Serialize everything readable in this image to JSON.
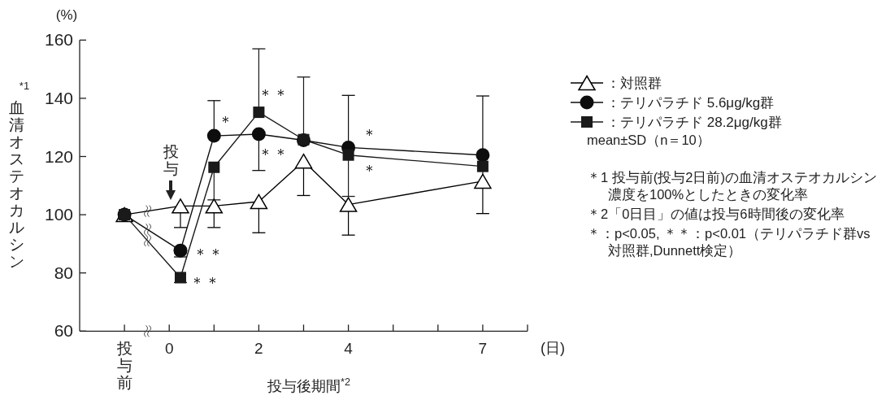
{
  "chart_data": {
    "type": "line",
    "ylabel": "$^{*1}$血清オステオカルシン",
    "xlabel": "投与後期間$^{*2}$",
    "x": [
      -1,
      0.25,
      1,
      2,
      3,
      4,
      7
    ],
    "xlim": [
      -2,
      8
    ],
    "xticks": [
      {
        "value": -1,
        "label": "投与前"
      },
      0,
      {
        "value": 1,
        "label": null
      },
      2,
      {
        "value": 3,
        "label": null
      },
      4,
      {
        "value": 5,
        "label": null
      },
      {
        "value": 6,
        "label": null
      },
      7,
      {
        "value": 8,
        "label": null
      }
    ],
    "ylim": [
      60,
      160
    ],
    "yticks": [
      60,
      80,
      100,
      120,
      140,
      160
    ],
    "legend": "right",
    "line_style": "solid",
    "series": [
      {
        "name": "：対照群",
        "color": "#000000",
        "marker": "triangle",
        "values": [
          100,
          103,
          103,
          104.5,
          118.4,
          103.5,
          111.5
        ],
        "errors": [
          null,
          [
            95.6,
            103
          ],
          [
            95.6,
            103
          ],
          [
            93.8,
            104.5
          ],
          [
            106.6,
            118.4
          ],
          [
            93,
            103.5
          ],
          [
            100.4,
            111.5
          ]
        ]
      },
      {
        "name": "：テリパラチド 5.6μg/kg群",
        "color": "#0d0d0d",
        "marker": "circle",
        "values": [
          100,
          87.7,
          127.1,
          127.7,
          125.6,
          123.1,
          120.5
        ],
        "errors": [
          null,
          [
            85.5,
            87.7
          ],
          [
            127.1,
            139.2
          ],
          [
            115.2,
            127.7
          ],
          null,
          [
            123.1,
            141
          ],
          [
            120.5,
            140.8
          ]
        ]
      },
      {
        "name": "：テリパラチド 28.2μg/kg群",
        "color": "#1a1a1a",
        "marker": "square",
        "values": [
          100,
          78.4,
          116.3,
          135.2,
          125.8,
          120.5,
          116.6
        ],
        "errors": [
          null,
          [
            76.7,
            78.4
          ],
          [
            105.1,
            116.3
          ],
          [
            135.2,
            157
          ],
          [
            125.8,
            147.3
          ],
          [
            106.3,
            120.5
          ],
          [
            109.2,
            116.6
          ]
        ]
      }
    ],
    "annotations": [
      "投与",
      {
        "text": "＊",
        "x": 1,
        "y": 127.1
      },
      {
        "text": "＊＊",
        "x": 2,
        "y": 135.2
      },
      {
        "text": "＊＊",
        "x": 2,
        "y": 127.7
      },
      {
        "text": "＊＊",
        "x": 0.25,
        "y": 87.7
      },
      {
        "text": "＊＊",
        "x": 0.25,
        "y": 78.4
      },
      {
        "text": "＊",
        "x": 4,
        "y": 123.1
      },
      {
        "text": "＊",
        "x": 4,
        "y": 120.5
      },
      "(%)",
      "(日)",
      "mean±SD（n＝10）",
      "＊1 投与前(投与2日前)の血清オステオカルシン濃度を100%としたときの変化率",
      "＊2「0日目」の値は投与6時間後の変化率",
      "＊：p<0.05, ＊＊：p<0.01（テリパラチド群vs対照群,Dunnett検定）"
    ]
  }
}
